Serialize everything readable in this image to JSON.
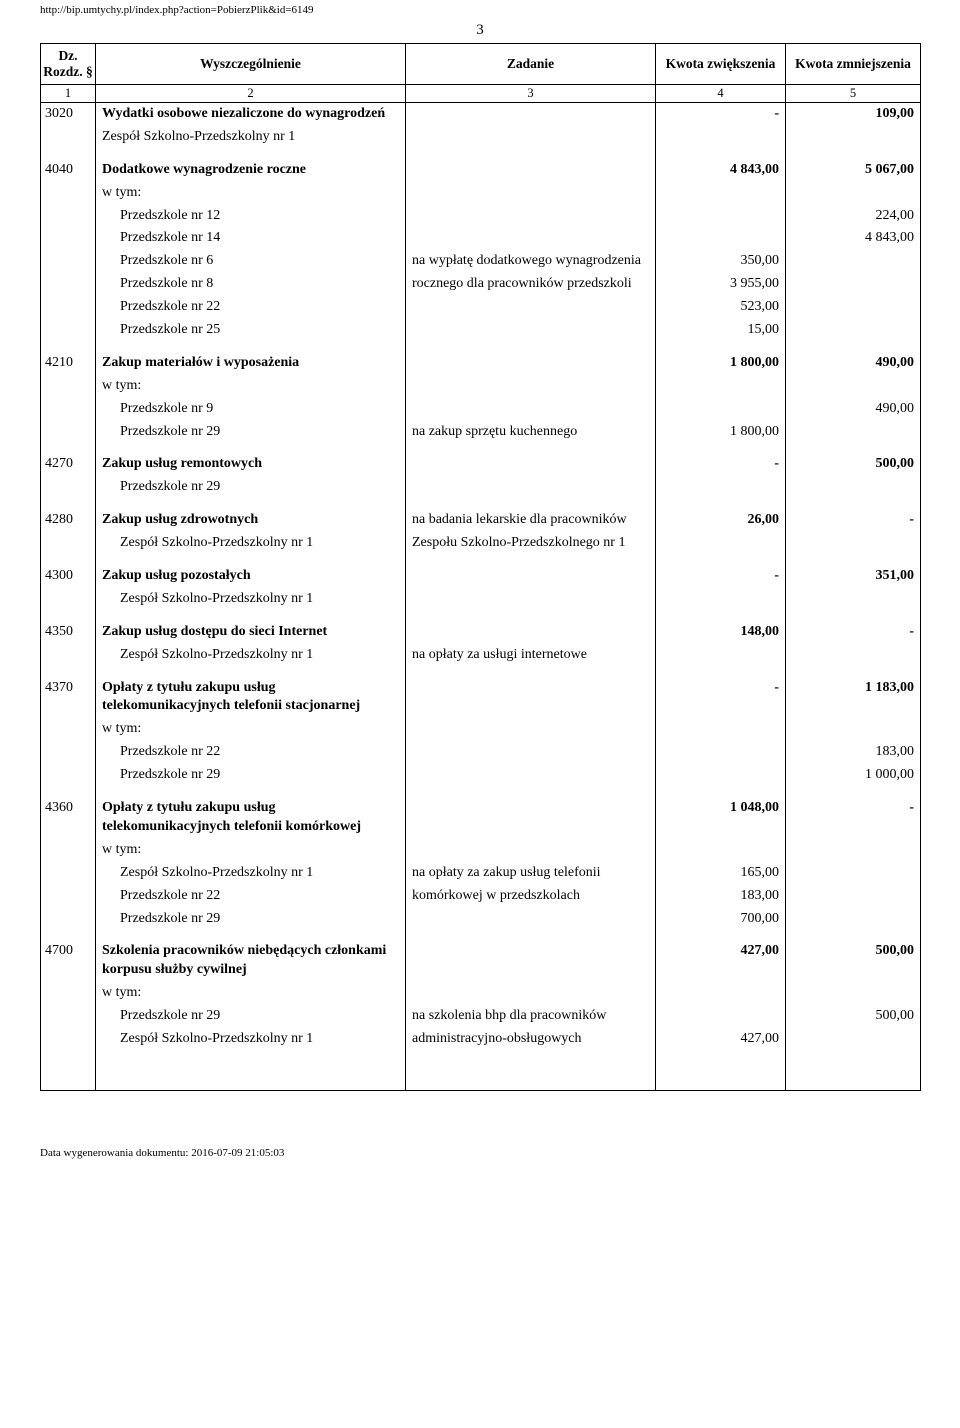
{
  "meta": {
    "url": "http://bip.umtychy.pl/index.php?action=PobierzPlik&id=6149",
    "page_number": "3",
    "footer": "Data wygenerowania dokumentu: 2016-07-09 21:05:03"
  },
  "header": {
    "col1": "Dz. Rozdz. §",
    "col2": "Wyszczególnienie",
    "col3": "Zadanie",
    "col4": "Kwota zwiększenia",
    "col5": "Kwota zmniejszenia",
    "n1": "1",
    "n2": "2",
    "n3": "3",
    "n4": "4",
    "n5": "5"
  },
  "sections": [
    {
      "code": "3020",
      "title": "Wydatki osobowe niezaliczone do wynagrodzeń",
      "title_task": "",
      "title_inc": "-",
      "title_dec": "109,00",
      "lines": [
        {
          "desc": "Zespół Szkolno-Przedszkolny nr 1",
          "task": "",
          "inc": "",
          "dec": ""
        }
      ]
    },
    {
      "code": "4040",
      "title": "Dodatkowe wynagrodzenie roczne",
      "title_task": "",
      "title_inc": "4 843,00",
      "title_dec": "5 067,00",
      "lines": [
        {
          "desc": "w tym:",
          "task": "",
          "inc": "",
          "dec": ""
        },
        {
          "desc": "Przedszkole nr 12",
          "task": "",
          "inc": "",
          "dec": "224,00",
          "indent": true
        },
        {
          "desc": "Przedszkole nr 14",
          "task": "",
          "inc": "",
          "dec": "4 843,00",
          "indent": true
        },
        {
          "desc": "Przedszkole nr 6",
          "task": "na wypłatę dodatkowego wynagrodzenia",
          "inc": "350,00",
          "dec": "",
          "indent": true
        },
        {
          "desc": "Przedszkole nr 8",
          "task": "rocznego dla pracowników przedszkoli",
          "inc": "3 955,00",
          "dec": "",
          "indent": true
        },
        {
          "desc": "Przedszkole nr 22",
          "task": "",
          "inc": "523,00",
          "dec": "",
          "indent": true
        },
        {
          "desc": "Przedszkole nr 25",
          "task": "",
          "inc": "15,00",
          "dec": "",
          "indent": true
        }
      ]
    },
    {
      "code": "4210",
      "title": "Zakup materiałów i wyposażenia",
      "title_task": "",
      "title_inc": "1 800,00",
      "title_dec": "490,00",
      "lines": [
        {
          "desc": "w tym:",
          "task": "",
          "inc": "",
          "dec": ""
        },
        {
          "desc": "Przedszkole nr 9",
          "task": "",
          "inc": "",
          "dec": "490,00",
          "indent": true
        },
        {
          "desc": "Przedszkole nr 29",
          "task": "na zakup sprzętu kuchennego",
          "inc": "1 800,00",
          "dec": "",
          "indent": true
        }
      ]
    },
    {
      "code": "4270",
      "title": "Zakup usług remontowych",
      "title_task": "",
      "title_inc": "-",
      "title_dec": "500,00",
      "lines": [
        {
          "desc": "Przedszkole nr 29",
          "task": "",
          "inc": "",
          "dec": "",
          "indent": true
        }
      ]
    },
    {
      "code": "4280",
      "title": "Zakup usług zdrowotnych",
      "title_task": "na badania lekarskie dla pracowników",
      "title_inc": "26,00",
      "title_dec": "-",
      "lines": [
        {
          "desc": "Zespół Szkolno-Przedszkolny nr 1",
          "task": "Zespołu Szkolno-Przedszkolnego nr 1",
          "inc": "",
          "dec": "",
          "indent": true
        }
      ]
    },
    {
      "code": "4300",
      "title": "Zakup usług pozostałych",
      "title_task": "",
      "title_inc": "-",
      "title_dec": "351,00",
      "lines": [
        {
          "desc": "Zespół Szkolno-Przedszkolny nr 1",
          "task": "",
          "inc": "",
          "dec": "",
          "indent": true
        }
      ]
    },
    {
      "code": "4350",
      "title": "Zakup usług dostępu do sieci Internet",
      "title_task": "",
      "title_inc": "148,00",
      "title_dec": "-",
      "lines": [
        {
          "desc": "Zespół Szkolno-Przedszkolny nr 1",
          "task": "na opłaty za usługi internetowe",
          "inc": "",
          "dec": "",
          "indent": true
        }
      ]
    },
    {
      "code": "4370",
      "title": "Opłaty z tytułu  zakupu usług telekomunikacyjnych telefonii stacjonarnej",
      "title_task": "",
      "title_inc": "-",
      "title_dec": "1 183,00",
      "lines": [
        {
          "desc": "w tym:",
          "task": "",
          "inc": "",
          "dec": ""
        },
        {
          "desc": "Przedszkole nr 22",
          "task": "",
          "inc": "",
          "dec": "183,00",
          "indent": true
        },
        {
          "desc": "Przedszkole nr 29",
          "task": "",
          "inc": "",
          "dec": "1 000,00",
          "indent": true
        }
      ]
    },
    {
      "code": "4360",
      "title": "Opłaty z tytułu  zakupu usług telekomunikacyjnych telefonii komórkowej",
      "title_task": "",
      "title_inc": "1 048,00",
      "title_dec": "-",
      "lines": [
        {
          "desc": "w tym:",
          "task": "",
          "inc": "",
          "dec": ""
        },
        {
          "desc": "Zespół Szkolno-Przedszkolny nr 1",
          "task": "na opłaty za zakup usług telefonii",
          "inc": "165,00",
          "dec": "",
          "indent": true
        },
        {
          "desc": "Przedszkole nr 22",
          "task": "komórkowej w przedszkolach",
          "inc": "183,00",
          "dec": "",
          "indent": true
        },
        {
          "desc": "Przedszkole nr 29",
          "task": "",
          "inc": "700,00",
          "dec": "",
          "indent": true
        }
      ]
    },
    {
      "code": "4700",
      "title": "Szkolenia pracowników niebędących członkami korpusu służby cywilnej",
      "title_task": "",
      "title_inc": "427,00",
      "title_dec": "500,00",
      "lines": [
        {
          "desc": "w tym:",
          "task": "",
          "inc": "",
          "dec": ""
        },
        {
          "desc": "Przedszkole nr 29",
          "task": "na szkolenia bhp dla pracowników",
          "inc": "",
          "dec": "500,00",
          "indent": true
        },
        {
          "desc": "Zespół Szkolno-Przedszkolny nr 1",
          "task": "administracyjno-obsługowych",
          "inc": "427,00",
          "dec": "",
          "indent": true
        }
      ]
    }
  ]
}
